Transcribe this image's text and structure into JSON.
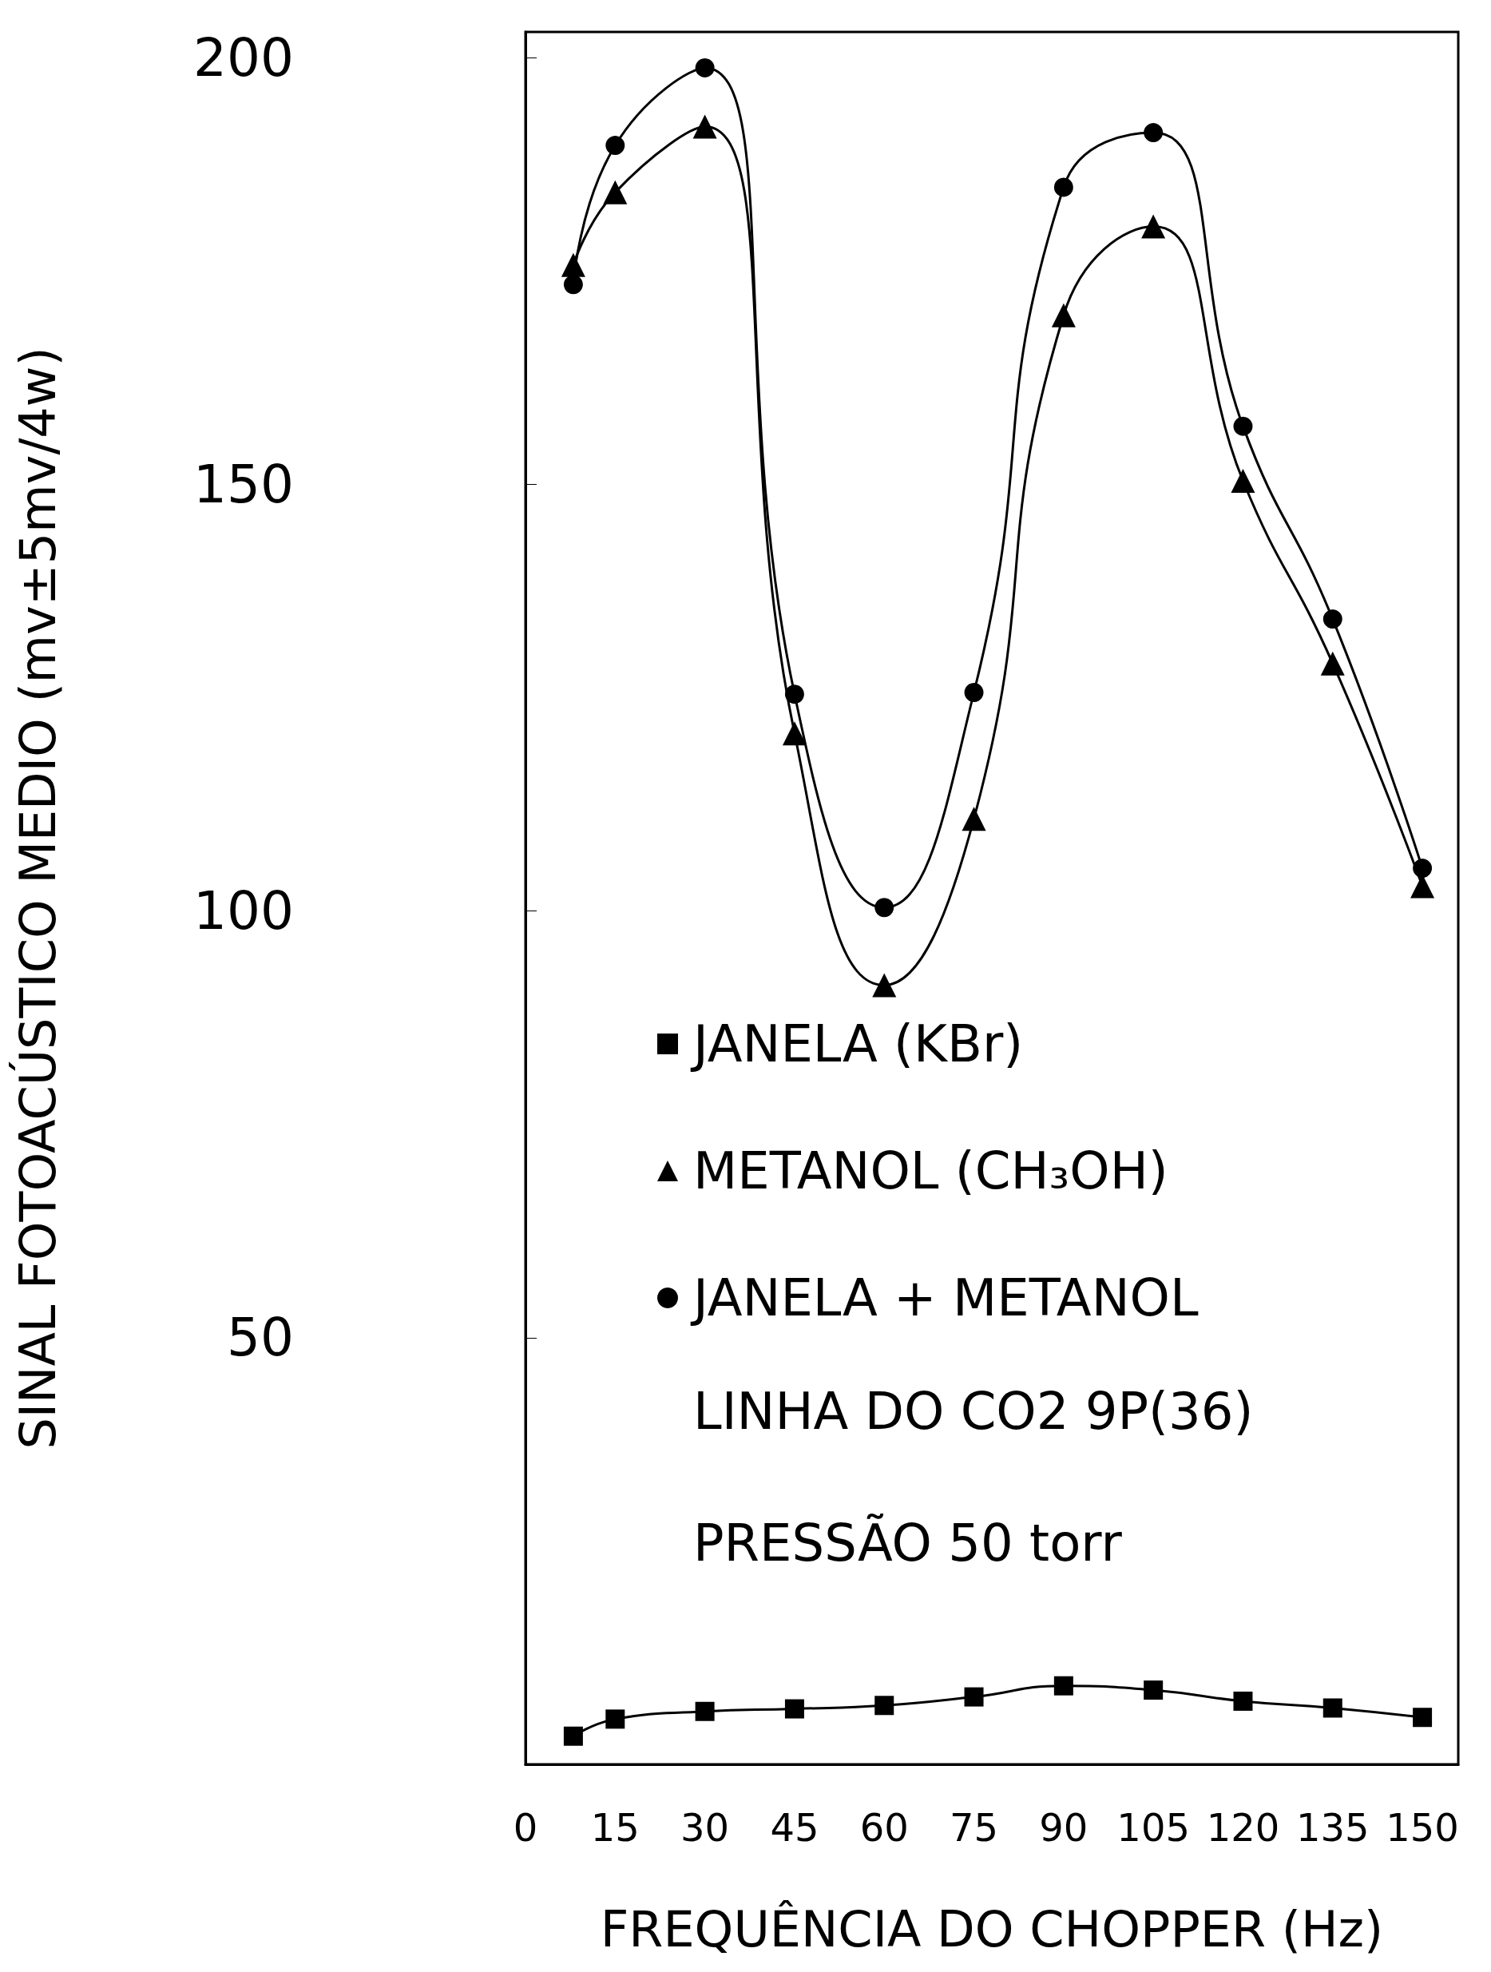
{
  "chart_data": {
    "type": "line",
    "xlabel": "FREQUÊNCIA DO CHOPPER (Hz)",
    "ylabel": "SINAL FOTOACÚSTICO MEDIO (mv±5mv/4w)",
    "x": [
      8,
      15,
      30,
      45,
      60,
      75,
      90,
      105,
      120,
      135,
      150
    ],
    "xlim": [
      0,
      156
    ],
    "xticks": [
      0,
      15,
      30,
      45,
      60,
      75,
      90,
      105,
      120,
      135,
      150
    ],
    "ylim": [
      0,
      203
    ],
    "yticks": [
      50,
      100,
      150,
      200
    ],
    "series": [
      {
        "name": "JANELA (KBr)",
        "color": "#000000",
        "marker": "square",
        "values": [
          3.3,
          5.3,
          6.2,
          6.5,
          6.9,
          7.9,
          9.2,
          8.7,
          7.4,
          6.6,
          5.5
        ]
      },
      {
        "name": "METANOL (CH₃OH)",
        "color": "#000000",
        "marker": "triangle",
        "values": [
          175.7,
          184.2,
          191.9,
          120.8,
          91.3,
          110.8,
          169.8,
          180.2,
          150.4,
          129,
          102.9
        ]
      },
      {
        "name": "JANELA + METANOL",
        "color": "#000000",
        "marker": "circle",
        "values": [
          173.4,
          189.7,
          198.8,
          125.4,
          100.4,
          125.6,
          184.8,
          191.2,
          156.8,
          134.2,
          105
        ]
      }
    ],
    "line_style": "solid",
    "grid": false,
    "legend": "bottom",
    "annotations": [
      "LINHA DO CO2 9P(36)",
      "PRESSÃO 50 torr"
    ]
  }
}
